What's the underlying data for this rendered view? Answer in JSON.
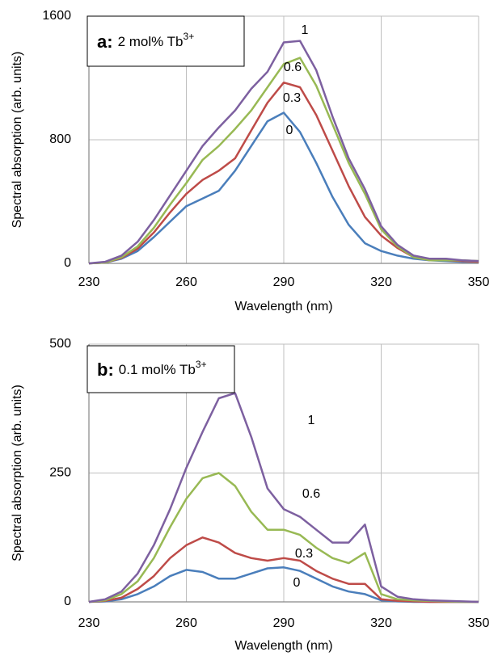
{
  "chart_data": [
    {
      "type": "line",
      "title_label": "a:",
      "title_text": "2 mol% Tb",
      "title_sup": "3+",
      "x_label": "Wavelength (nm)",
      "y_label": "Spectral absorption (arb. units)",
      "x": [
        230,
        235,
        240,
        245,
        250,
        255,
        260,
        265,
        270,
        275,
        280,
        285,
        290,
        295,
        300,
        305,
        310,
        315,
        320,
        325,
        330,
        335,
        340,
        345,
        350
      ],
      "xlim": [
        230,
        350
      ],
      "xticks": [
        230,
        260,
        290,
        320,
        350
      ],
      "ylim": [
        0,
        1600
      ],
      "yticks": [
        0,
        800,
        1600
      ],
      "grid": true,
      "series": [
        {
          "name": "0",
          "color": "#4a7ebb",
          "values": [
            0,
            5,
            30,
            80,
            170,
            270,
            370,
            420,
            470,
            600,
            760,
            920,
            975,
            850,
            650,
            430,
            250,
            130,
            80,
            50,
            30,
            20,
            15,
            10,
            10
          ]
        },
        {
          "name": "0.3",
          "color": "#be4b48",
          "values": [
            0,
            5,
            35,
            95,
            200,
            330,
            450,
            540,
            600,
            680,
            860,
            1040,
            1170,
            1140,
            960,
            730,
            500,
            300,
            180,
            100,
            40,
            20,
            20,
            15,
            10
          ]
        },
        {
          "name": "0.6",
          "color": "#98b954",
          "values": [
            0,
            5,
            40,
            110,
            230,
            380,
            520,
            670,
            760,
            870,
            990,
            1140,
            1290,
            1330,
            1150,
            900,
            650,
            450,
            220,
            110,
            40,
            20,
            20,
            20,
            15
          ]
        },
        {
          "name": "1",
          "color": "#7d60a0",
          "values": [
            0,
            10,
            50,
            140,
            280,
            440,
            600,
            760,
            880,
            990,
            1130,
            1240,
            1430,
            1440,
            1250,
            950,
            680,
            480,
            240,
            120,
            50,
            30,
            30,
            20,
            15
          ]
        }
      ]
    },
    {
      "type": "line",
      "title_label": "b:",
      "title_text": "0.1 mol% Tb",
      "title_sup": "3+",
      "x_label": "Wavelength (nm)",
      "y_label": "Spectral absorption (arb. units)",
      "x": [
        230,
        235,
        240,
        245,
        250,
        255,
        260,
        265,
        270,
        275,
        280,
        285,
        290,
        295,
        300,
        305,
        310,
        315,
        320,
        325,
        330,
        335,
        340,
        345,
        350
      ],
      "xlim": [
        230,
        350
      ],
      "xticks": [
        230,
        260,
        290,
        320,
        350
      ],
      "ylim": [
        0,
        500
      ],
      "yticks": [
        0,
        250,
        500
      ],
      "grid": true,
      "series": [
        {
          "name": "0",
          "color": "#4a7ebb",
          "values": [
            0,
            1,
            5,
            15,
            30,
            50,
            62,
            58,
            45,
            45,
            55,
            65,
            67,
            60,
            45,
            30,
            20,
            15,
            3,
            1,
            0,
            0,
            0,
            0,
            0
          ]
        },
        {
          "name": "0.3",
          "color": "#be4b48",
          "values": [
            0,
            2,
            8,
            25,
            50,
            85,
            110,
            125,
            115,
            95,
            85,
            80,
            85,
            80,
            60,
            45,
            35,
            35,
            5,
            2,
            1,
            0,
            0,
            0,
            0
          ]
        },
        {
          "name": "0.6",
          "color": "#98b954",
          "values": [
            0,
            3,
            15,
            40,
            85,
            145,
            200,
            240,
            250,
            225,
            175,
            140,
            140,
            130,
            105,
            85,
            75,
            95,
            15,
            5,
            3,
            2,
            1,
            0,
            0
          ]
        },
        {
          "name": "1",
          "color": "#7d60a0",
          "values": [
            0,
            5,
            20,
            55,
            110,
            180,
            260,
            330,
            395,
            405,
            320,
            220,
            180,
            165,
            140,
            115,
            115,
            150,
            30,
            10,
            5,
            3,
            2,
            1,
            0
          ]
        }
      ]
    }
  ]
}
